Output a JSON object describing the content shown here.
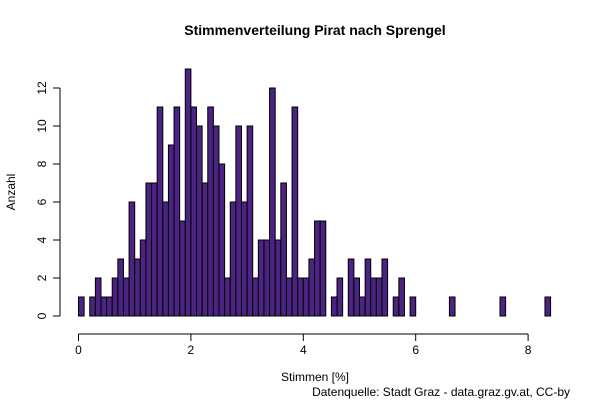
{
  "chart_data": {
    "type": "bar",
    "title": "Stimmenverteilung Pirat nach Sprengel",
    "xlabel": "Stimmen [%]",
    "ylabel": "Anzahl",
    "source": "Datenquelle: Stadt Graz - data.graz.gv.at, CC-by",
    "xlim": [
      0,
      8.4
    ],
    "ylim": [
      0,
      13
    ],
    "x_ticks": [
      "0",
      "2",
      "4",
      "6",
      "8"
    ],
    "y_ticks": [
      "0",
      "2",
      "4",
      "6",
      "8",
      "10",
      "12"
    ],
    "bin_width": 0.1,
    "bar_color": "#4b2383",
    "border_color": "#000000",
    "bins_start": [
      0.0,
      0.1,
      0.2,
      0.3,
      0.4,
      0.5,
      0.6,
      0.7,
      0.8,
      0.9,
      1.0,
      1.1,
      1.2,
      1.3,
      1.4,
      1.5,
      1.6,
      1.7,
      1.8,
      1.9,
      2.0,
      2.1,
      2.2,
      2.3,
      2.4,
      2.5,
      2.6,
      2.7,
      2.8,
      2.9,
      3.0,
      3.1,
      3.2,
      3.3,
      3.4,
      3.5,
      3.6,
      3.7,
      3.8,
      3.9,
      4.0,
      4.1,
      4.2,
      4.3,
      4.4,
      4.5,
      4.6,
      4.7,
      4.8,
      4.9,
      5.0,
      5.1,
      5.2,
      5.3,
      5.4,
      5.5,
      5.6,
      5.7,
      5.8,
      5.9,
      6.0,
      6.1,
      6.2,
      6.3,
      6.4,
      6.5,
      6.6,
      6.7,
      6.8,
      6.9,
      7.0,
      7.1,
      7.2,
      7.3,
      7.4,
      7.5,
      7.6,
      7.7,
      7.8,
      7.9,
      8.0,
      8.1,
      8.2,
      8.3
    ],
    "values": [
      1,
      0,
      1,
      2,
      1,
      1,
      2,
      3,
      2,
      6,
      3,
      4,
      7,
      7,
      11,
      6,
      9,
      11,
      5,
      13,
      11,
      10,
      7,
      11,
      10,
      8,
      2,
      6,
      10,
      6,
      10,
      2,
      4,
      4,
      12,
      4,
      7,
      2,
      11,
      2,
      2,
      3,
      5,
      5,
      0,
      1,
      2,
      0,
      3,
      2,
      1,
      3,
      2,
      2,
      3,
      0,
      1,
      2,
      0,
      1,
      0,
      0,
      0,
      0,
      0,
      0,
      1,
      0,
      0,
      0,
      0,
      0,
      0,
      0,
      0,
      1,
      0,
      0,
      0,
      0,
      0,
      0,
      0,
      1
    ]
  }
}
